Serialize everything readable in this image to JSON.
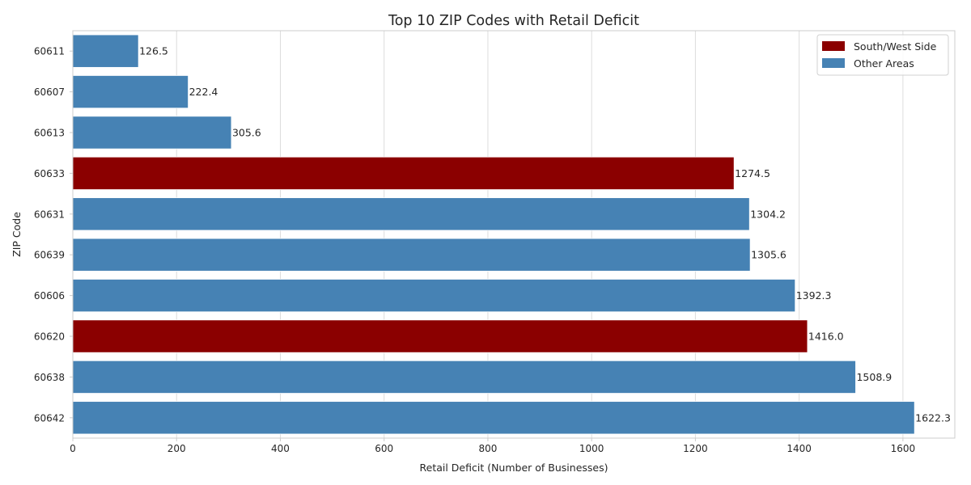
{
  "chart_data": {
    "type": "bar",
    "orientation": "horizontal",
    "title": "Top 10 ZIP Codes with Retail Deficit",
    "xlabel": "Retail Deficit (Number of Businesses)",
    "ylabel": "ZIP Code",
    "xlim": [
      0,
      1700
    ],
    "x_ticks": [
      0,
      200,
      400,
      600,
      800,
      1000,
      1200,
      1400,
      1600
    ],
    "grid": "vertical",
    "legend_position": "top-right",
    "legend": [
      {
        "label": "South/West Side",
        "color": "#8b0000"
      },
      {
        "label": "Other Areas",
        "color": "#4682b4"
      }
    ],
    "categories": [
      "60611",
      "60607",
      "60613",
      "60633",
      "60631",
      "60639",
      "60606",
      "60620",
      "60638",
      "60642"
    ],
    "values": [
      126.5,
      222.4,
      305.6,
      1274.5,
      1304.2,
      1305.6,
      1392.3,
      1416.0,
      1508.9,
      1622.3
    ],
    "value_labels": [
      "126.5",
      "222.4",
      "305.6",
      "1274.5",
      "1304.2",
      "1305.6",
      "1392.3",
      "1416.0",
      "1508.9",
      "1622.3"
    ],
    "groups": [
      "Other Areas",
      "Other Areas",
      "Other Areas",
      "South/West Side",
      "Other Areas",
      "Other Areas",
      "Other Areas",
      "South/West Side",
      "Other Areas",
      "Other Areas"
    ]
  }
}
